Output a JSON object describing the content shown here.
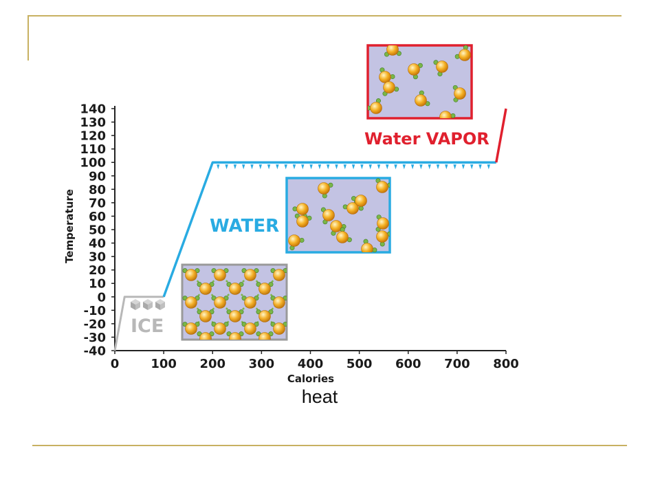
{
  "colors": {
    "rule": "#c7b161",
    "ice_curve": "#b8b8b8",
    "water_curve": "#29abe2",
    "vapor_curve": "#e0202e",
    "box_fill": "#c3c3e3",
    "molecule": "#f2a81d",
    "hydrogen": "#7ab648"
  },
  "chart_data": {
    "type": "line",
    "xlabel": "Calories",
    "ylabel": "Temperature",
    "xlim": [
      0,
      800
    ],
    "ylim": [
      -40,
      140
    ],
    "x_ticks": [
      0,
      100,
      200,
      300,
      400,
      500,
      600,
      700,
      800
    ],
    "y_ticks": [
      140,
      130,
      120,
      110,
      100,
      90,
      80,
      70,
      60,
      50,
      40,
      30,
      20,
      10,
      0,
      -10,
      -20,
      -30,
      -40
    ],
    "x_tick_labels": [
      "0",
      "100",
      "200",
      "300",
      "400",
      "500",
      "600",
      "700",
      "800"
    ],
    "y_tick_labels": [
      "140",
      "130",
      "120",
      "110",
      "100",
      "90",
      "80",
      "70",
      "60",
      "50",
      "40",
      "30",
      "20",
      "10",
      "0",
      "-10",
      "-20",
      "-30",
      "-40"
    ],
    "segments": [
      {
        "phase": "ice",
        "points": [
          [
            0,
            -40
          ],
          [
            20,
            0
          ],
          [
            100,
            0
          ]
        ]
      },
      {
        "phase": "water",
        "points": [
          [
            100,
            0
          ],
          [
            200,
            100
          ],
          [
            780,
            100
          ]
        ]
      },
      {
        "phase": "vapor",
        "points": [
          [
            780,
            100
          ],
          [
            800,
            140
          ]
        ]
      }
    ],
    "phase_labels": {
      "ice": "ICE",
      "water": "WATER",
      "vapor": "Water VAPOR"
    }
  },
  "caption": "heat"
}
